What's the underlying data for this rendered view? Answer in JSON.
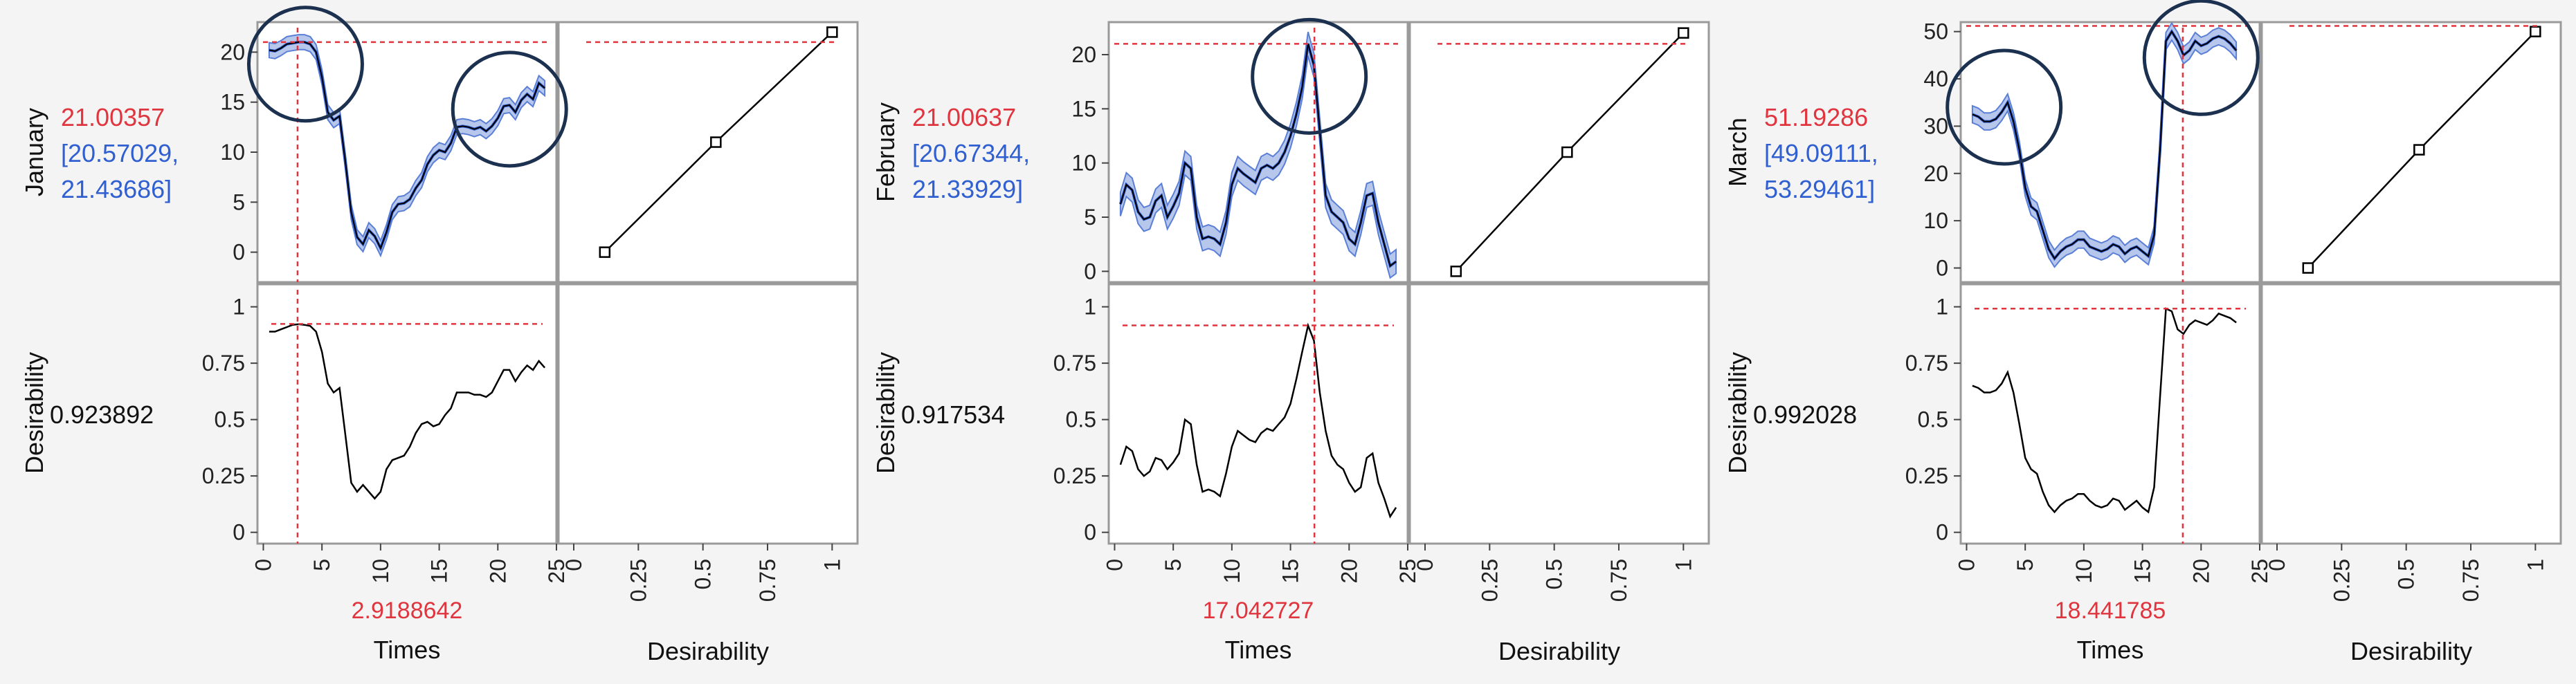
{
  "colors": {
    "background": "#f4f4f4",
    "panel": "#ffffff",
    "frame": "#9a9a9a",
    "curve": "#000000",
    "band_fill": "#a9bde8",
    "band_edge": "#5b7fd6",
    "mean_line": "#2a57cc",
    "crosshair": "#e0353f",
    "value_red": "#e0353f",
    "interval_blue": "#2f5fd0",
    "circle": "#1c3050"
  },
  "chart_data": [
    {
      "type": "line",
      "title": "",
      "response": {
        "label": "January",
        "value": "21.00357",
        "interval_low": "[20.57029,",
        "interval_high": "21.43686]",
        "ylim": [
          -3,
          23
        ],
        "yticks": [
          "0",
          "5",
          "10",
          "15",
          "20"
        ],
        "target_level": 21.0,
        "times": [
          0.5,
          1,
          1.5,
          2,
          2.5,
          3,
          3.5,
          4,
          4.5,
          5,
          5.5,
          6,
          6.5,
          7,
          7.5,
          8,
          8.5,
          9,
          9.5,
          10,
          10.5,
          11,
          11.5,
          12,
          12.5,
          13,
          13.5,
          14,
          14.5,
          15,
          15.5,
          16,
          16.5,
          17,
          17.5,
          18,
          18.5,
          19,
          19.5,
          20,
          20.5,
          21,
          21.5,
          22,
          22.5,
          23,
          23.5,
          24
        ],
        "values": [
          20.2,
          20.1,
          20.4,
          20.8,
          20.9,
          21.0,
          21.0,
          20.8,
          20.0,
          17.5,
          14.0,
          13.2,
          13.6,
          9.0,
          4.0,
          1.5,
          0.8,
          2.2,
          1.6,
          0.4,
          2.0,
          4.0,
          4.8,
          4.9,
          5.3,
          6.4,
          7.2,
          8.8,
          9.7,
          10.2,
          10.0,
          10.9,
          12.5,
          12.6,
          12.5,
          12.3,
          12.5,
          12.1,
          12.6,
          13.4,
          14.6,
          14.7,
          14.0,
          15.2,
          15.8,
          15.3,
          16.9,
          16.4
        ],
        "band": 0.75
      },
      "desirability": {
        "label": "Desirability",
        "value": "0.923892",
        "ylim": [
          -0.05,
          1.1
        ],
        "yticks": [
          "0",
          "0.25",
          "0.5",
          "0.75",
          "1"
        ],
        "target_level": 0.923892,
        "values": [
          0.89,
          0.89,
          0.9,
          0.91,
          0.92,
          0.923,
          0.92,
          0.915,
          0.89,
          0.8,
          0.66,
          0.62,
          0.64,
          0.43,
          0.22,
          0.18,
          0.21,
          0.18,
          0.15,
          0.18,
          0.28,
          0.32,
          0.33,
          0.34,
          0.38,
          0.44,
          0.48,
          0.49,
          0.47,
          0.48,
          0.52,
          0.55,
          0.62,
          0.62,
          0.62,
          0.61,
          0.61,
          0.6,
          0.62,
          0.67,
          0.72,
          0.72,
          0.67,
          0.71,
          0.74,
          0.72,
          0.76,
          0.73
        ]
      },
      "times_label": "Times",
      "times_value": "2.9188642",
      "times_current": 2.9188642,
      "xlim": [
        -0.5,
        25
      ],
      "xticks": [
        "0",
        "5",
        "10",
        "15",
        "20",
        "25"
      ],
      "desirability_axis_label": "Desirability",
      "desirability_xticks": [
        "0",
        "0.25",
        "0.5",
        "0.75",
        "1"
      ],
      "desirability_fn": [
        [
          0.12,
          0.0
        ],
        [
          0.55,
          11.0
        ],
        [
          1.0,
          22.0
        ]
      ],
      "circles": [
        [
          3.6,
          18.8
        ],
        [
          21.0,
          14.3
        ]
      ]
    },
    {
      "type": "line",
      "title": "",
      "response": {
        "label": "February",
        "value": "21.00637",
        "interval_low": "[20.67344,",
        "interval_high": "21.33929]",
        "ylim": [
          -1,
          23
        ],
        "yticks": [
          "0",
          "5",
          "10",
          "15",
          "20"
        ],
        "target_level": 21.0,
        "times": [
          0.5,
          1,
          1.5,
          2,
          2.5,
          3,
          3.5,
          4,
          4.5,
          5,
          5.5,
          6,
          6.5,
          7,
          7.5,
          8,
          8.5,
          9,
          9.5,
          10,
          10.5,
          11,
          11.5,
          12,
          12.5,
          13,
          13.5,
          14,
          14.5,
          15,
          15.5,
          16,
          16.5,
          17,
          17.5,
          18,
          18.5,
          19,
          19.5,
          20,
          20.5,
          21,
          21.5,
          22,
          22.5,
          23,
          23.5,
          24
        ],
        "values": [
          6.2,
          8.0,
          7.5,
          5.5,
          4.8,
          5.0,
          6.5,
          7.0,
          5.0,
          6.0,
          7.2,
          10.0,
          9.5,
          5.0,
          3.0,
          3.2,
          3.0,
          2.5,
          4.5,
          8.0,
          9.5,
          9.0,
          8.6,
          8.2,
          9.5,
          9.8,
          9.5,
          10.0,
          11.0,
          12.5,
          14.5,
          17.0,
          21.0,
          19.0,
          13.0,
          7.0,
          5.5,
          5.0,
          4.5,
          3.0,
          2.5,
          4.5,
          7.0,
          7.2,
          4.5,
          2.5,
          0.5,
          0.9
        ],
        "band": 1.1
      },
      "desirability": {
        "label": "Desirability",
        "value": "0.917534",
        "ylim": [
          -0.05,
          1.1
        ],
        "yticks": [
          "0",
          "0.25",
          "0.5",
          "0.75",
          "1"
        ],
        "target_level": 0.917534,
        "values": [
          0.3,
          0.38,
          0.36,
          0.28,
          0.25,
          0.27,
          0.33,
          0.32,
          0.28,
          0.31,
          0.35,
          0.5,
          0.48,
          0.3,
          0.18,
          0.19,
          0.18,
          0.16,
          0.26,
          0.38,
          0.45,
          0.43,
          0.41,
          0.4,
          0.44,
          0.46,
          0.45,
          0.48,
          0.51,
          0.57,
          0.68,
          0.8,
          0.917,
          0.85,
          0.62,
          0.45,
          0.34,
          0.3,
          0.28,
          0.22,
          0.18,
          0.2,
          0.33,
          0.35,
          0.22,
          0.15,
          0.07,
          0.11
        ],
        "vertical_offset": 0
      },
      "times_label": "Times",
      "times_value": "17.042727",
      "times_current": 17.042727,
      "xlim": [
        -0.5,
        25
      ],
      "xticks": [
        "0",
        "5",
        "10",
        "15",
        "20",
        "25"
      ],
      "desirability_axis_label": "Desirability",
      "desirability_xticks": [
        "0",
        "0.25",
        "0.5",
        "0.75",
        "1"
      ],
      "desirability_fn": [
        [
          0.12,
          0.0
        ],
        [
          0.55,
          11.0
        ],
        [
          1.0,
          22.0
        ]
      ],
      "circles": [
        [
          16.6,
          18.0
        ]
      ]
    },
    {
      "type": "line",
      "title": "",
      "response": {
        "label": "March",
        "value": "51.19286",
        "interval_low": "[49.09111,",
        "interval_high": "53.29461]",
        "ylim": [
          -3,
          52
        ],
        "yticks": [
          "0",
          "10",
          "20",
          "30",
          "40",
          "50"
        ],
        "target_level": 51.2,
        "times": [
          0.5,
          1,
          1.5,
          2,
          2.5,
          3,
          3.5,
          4,
          4.5,
          5,
          5.5,
          6,
          6.5,
          7,
          7.5,
          8,
          8.5,
          9,
          9.5,
          10,
          10.5,
          11,
          11.5,
          12,
          12.5,
          13,
          13.5,
          14,
          14.5,
          15,
          15.5,
          16,
          16.5,
          17,
          17.5,
          18,
          18.5,
          19,
          19.5,
          20,
          20.5,
          21,
          21.5,
          22,
          22.5,
          23
        ],
        "values": [
          32.5,
          32.0,
          31.0,
          31.0,
          31.5,
          33.0,
          35.0,
          31.0,
          25.0,
          17.0,
          13.0,
          12.0,
          8.0,
          4.0,
          2.0,
          3.5,
          4.5,
          5.0,
          6.0,
          6.0,
          4.5,
          4.0,
          3.5,
          4.0,
          5.0,
          4.5,
          3.0,
          4.0,
          4.5,
          3.5,
          2.5,
          7.0,
          25.0,
          48.0,
          50.0,
          48.0,
          45.0,
          46.0,
          48.0,
          47.0,
          47.5,
          48.5,
          49.0,
          48.5,
          47.5,
          46.0
        ],
        "band": 1.8
      },
      "desirability": {
        "label": "Desirability",
        "value": "0.992028",
        "ylim": [
          -0.05,
          1.1
        ],
        "yticks": [
          "0",
          "0.25",
          "0.5",
          "0.75",
          "1"
        ],
        "target_level": 0.992028,
        "values": [
          0.65,
          0.64,
          0.62,
          0.62,
          0.63,
          0.66,
          0.71,
          0.62,
          0.48,
          0.33,
          0.28,
          0.26,
          0.18,
          0.12,
          0.09,
          0.12,
          0.14,
          0.15,
          0.17,
          0.17,
          0.14,
          0.12,
          0.11,
          0.12,
          0.15,
          0.14,
          0.1,
          0.12,
          0.14,
          0.11,
          0.09,
          0.2,
          0.6,
          0.992,
          0.98,
          0.9,
          0.88,
          0.92,
          0.94,
          0.93,
          0.92,
          0.94,
          0.97,
          0.96,
          0.95,
          0.93
        ]
      },
      "times_label": "Times",
      "times_value": "18.441785",
      "times_current": 18.441785,
      "xlim": [
        -0.5,
        25
      ],
      "xticks": [
        "0",
        "5",
        "10",
        "15",
        "20",
        "25"
      ],
      "desirability_axis_label": "Desirability",
      "desirability_xticks": [
        "0",
        "0.25",
        "0.5",
        "0.75",
        "1"
      ],
      "desirability_fn": [
        [
          0.12,
          0.0
        ],
        [
          0.55,
          25.0
        ],
        [
          1.0,
          50.0
        ]
      ],
      "circles": [
        [
          3.2,
          34.0
        ],
        [
          20.0,
          44.5
        ]
      ]
    }
  ]
}
